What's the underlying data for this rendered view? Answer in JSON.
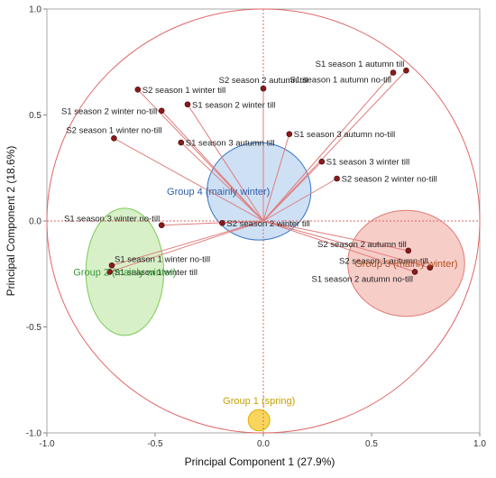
{
  "chart_data": {
    "type": "scatter",
    "xlabel": "Principal Component 1 (27.9%)",
    "ylabel": "Principal Component 2 (18.6%)",
    "xlim": [
      -1.0,
      1.0
    ],
    "ylim": [
      -1.0,
      1.0
    ],
    "x_ticks": [
      "-1.0",
      "-0.5",
      "0.0",
      "0.5",
      "1.0"
    ],
    "y_ticks": [
      "1.0",
      "0.5",
      "0.0",
      "-0.5",
      "-1.0"
    ],
    "grid": false,
    "points": [
      {
        "label": "S2 season 2 autumn till",
        "x": 0.0,
        "y": 0.625,
        "label_pos": "above"
      },
      {
        "label": "S1 season 1 autumn till",
        "x": 0.66,
        "y": 0.71,
        "label_pos": "above-left"
      },
      {
        "label": "S1 season 1 autumn no-till",
        "x": 0.6,
        "y": 0.7,
        "label_pos": "below-left"
      },
      {
        "label": "S2 season 1 winter till",
        "x": -0.58,
        "y": 0.62,
        "label_pos": "right"
      },
      {
        "label": "S1 season 2 winter no-till",
        "x": -0.47,
        "y": 0.52,
        "label_pos": "left"
      },
      {
        "label": "S1 season 2 winter till",
        "x": -0.35,
        "y": 0.55,
        "label_pos": "right"
      },
      {
        "label": "S2 season 1 winter no-till",
        "x": -0.69,
        "y": 0.39,
        "label_pos": "above"
      },
      {
        "label": "S1 season 3 autumn till",
        "x": -0.38,
        "y": 0.37,
        "label_pos": "right"
      },
      {
        "label": "S1 season 3 autumn no-till",
        "x": 0.12,
        "y": 0.41,
        "label_pos": "right"
      },
      {
        "label": "S1 season 3 winter till",
        "x": 0.27,
        "y": 0.28,
        "label_pos": "right"
      },
      {
        "label": "S2 season 2 winter no-till",
        "x": 0.34,
        "y": 0.2,
        "label_pos": "right"
      },
      {
        "label": "S1 season 3 winter no-till",
        "x": -0.47,
        "y": -0.02,
        "label_pos": "above-left"
      },
      {
        "label": "S2 season 2 winter till",
        "x": -0.19,
        "y": -0.01,
        "label_pos": "right"
      },
      {
        "label": "S2 season 2 autumn till",
        "x": 0.67,
        "y": -0.14,
        "label_pos": "above-left"
      },
      {
        "label": "S2 season 1 autumn till",
        "x": 0.77,
        "y": -0.22,
        "label_pos": "above-left"
      },
      {
        "label": "S1 season 2 autumn no-till",
        "x": 0.7,
        "y": -0.24,
        "label_pos": "below-left"
      },
      {
        "label": "S1 season 1 winter no-till",
        "x": -0.7,
        "y": -0.21,
        "label_pos": "above-right"
      },
      {
        "label": "S1 season 1 winter till",
        "x": -0.71,
        "y": -0.24,
        "label_pos": "right"
      }
    ],
    "groups": [
      {
        "label": "Group 1 (spring)",
        "cx": -0.02,
        "cy": -0.94,
        "rx": 0.05,
        "ry": 0.05,
        "fill": "#f5c518",
        "stroke": "#e0b000",
        "text_color": "#c8a000"
      },
      {
        "label": "Group 2 (mainly winter)",
        "cx": -0.64,
        "cy": -0.24,
        "rx": 0.18,
        "ry": 0.3,
        "fill": "#c8eab0",
        "stroke": "#7cc95a",
        "text_color": "#3a9a3a"
      },
      {
        "label": "Group 3 (mainly winter)",
        "cx": 0.66,
        "cy": -0.2,
        "rx": 0.27,
        "ry": 0.25,
        "fill": "#f4b8b0",
        "stroke": "#e07b74",
        "text_color": "#b05020"
      },
      {
        "label": "Group 4 (mainly winter)",
        "cx": -0.02,
        "cy": 0.14,
        "rx": 0.24,
        "ry": 0.23,
        "fill": "#b9d3ef",
        "stroke": "#3a77c8",
        "text_color": "#2f5ea8"
      }
    ],
    "colors": {
      "point": "#8b1a1a",
      "vector": "#e07c7c",
      "unit_circle": "#e06666",
      "ref_line": "#e06666",
      "axis_box": "#999999"
    }
  }
}
